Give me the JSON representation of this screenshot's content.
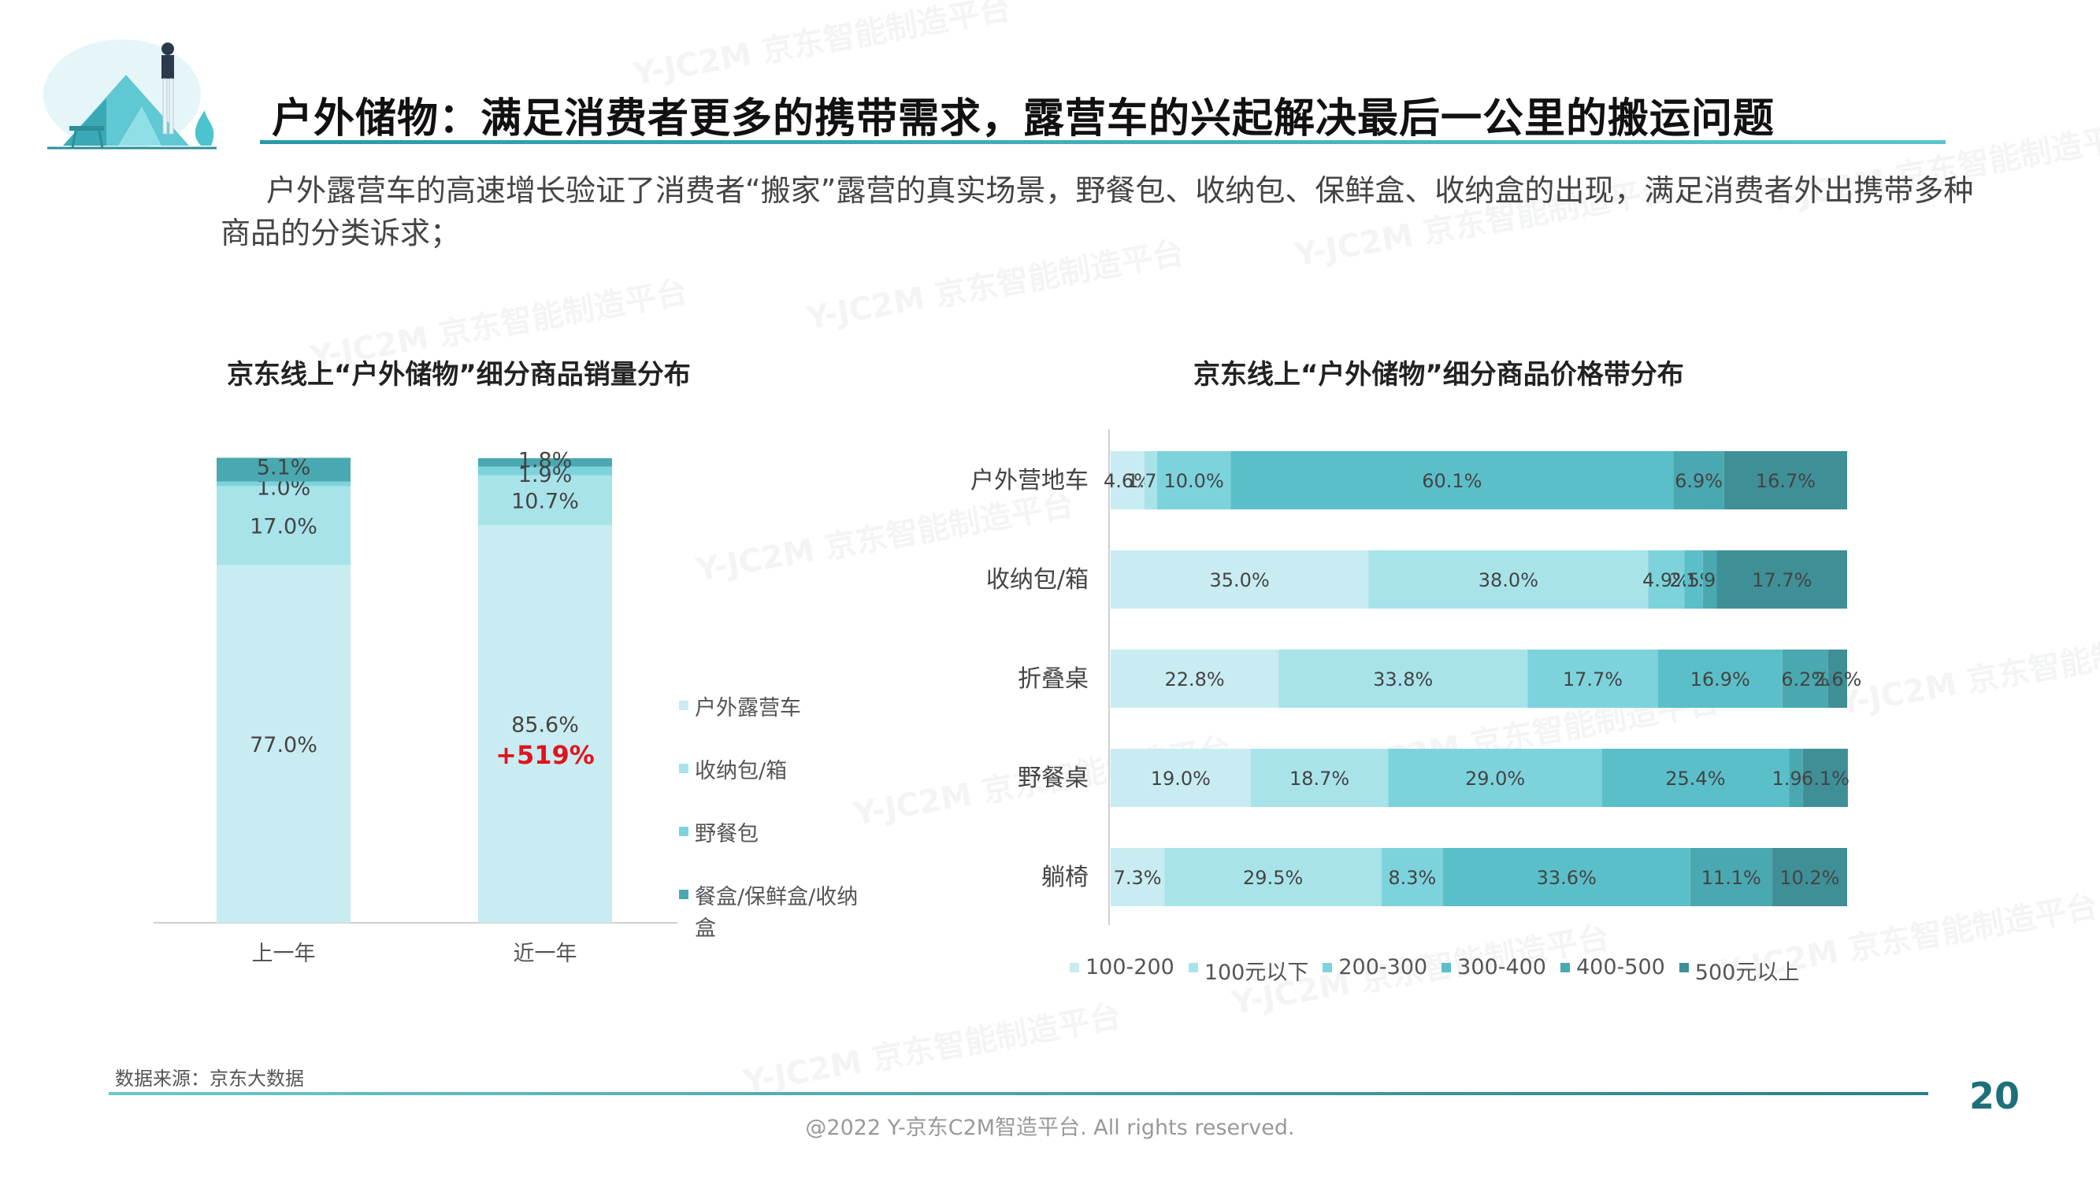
{
  "header": {
    "title": "户外储物：满足消费者更多的携带需求，露营车的兴起解决最后一公里的搬运问题",
    "intro": "户外露营车的高速增长验证了消费者“搬家”露营的真实场景，野餐包、收纳包、保鲜盒、收纳盒的出现，满足消费者外出携带多种商品的分类诉求；"
  },
  "watermark": "Y-JC2M 京东智能制造平台",
  "footer": {
    "source": "数据来源：京东大数据",
    "copyright": "@2022 Y-京东C2M智造平台. All rights reserved.",
    "page_number": "20"
  },
  "colors": {
    "c1": "#c8ecf1",
    "c2": "#a8e3ea",
    "c3": "#7dd3dc",
    "c4": "#5bbfc9",
    "c5": "#4aa8b0",
    "c6": "#3f8f97",
    "title_line": "#2a9aa8",
    "growth": "#e0141e",
    "page_number": "#1f6f7a"
  },
  "chart_data": [
    {
      "type": "bar",
      "stacked": true,
      "title": "京东线上“户外储物”细分商品销量分布",
      "categories": [
        "上一年",
        "近一年"
      ],
      "series": [
        {
          "name": "户外露营车",
          "values": [
            77.0,
            85.6
          ],
          "color": "#c8ecf1"
        },
        {
          "name": "收纳包/箱",
          "values": [
            17.0,
            10.7
          ],
          "color": "#a8e3ea"
        },
        {
          "name": "野餐包",
          "values": [
            1.0,
            1.9
          ],
          "color": "#7dd3dc"
        },
        {
          "name": "餐盒/保鲜盒/收纳盒",
          "values": [
            5.1,
            1.8
          ],
          "color": "#4aa8b0"
        }
      ],
      "labels": [
        [
          "77.0%",
          "17.0%",
          "1.0%",
          "5.1%"
        ],
        [
          "85.6%",
          "10.7%",
          "1.9%",
          "1.8%"
        ]
      ],
      "annotation": "+519%",
      "legend_position": "right"
    },
    {
      "type": "bar",
      "orientation": "horizontal",
      "stacked": true,
      "title": "京东线上“户外储物”细分商品价格带分布",
      "categories": [
        "户外营地车",
        "收纳包/箱",
        "折叠桌",
        "野餐桌",
        "躺椅"
      ],
      "series": [
        {
          "name": "100-200",
          "values": [
            4.6,
            35.0,
            22.8,
            19.0,
            7.3
          ],
          "color": "#c8ecf1"
        },
        {
          "name": "100元以下",
          "values": [
            1.7,
            38.0,
            33.8,
            18.7,
            29.5
          ],
          "color": "#a8e3ea"
        },
        {
          "name": "200-300",
          "values": [
            10.0,
            4.9,
            17.7,
            29.0,
            8.3
          ],
          "color": "#7dd3dc"
        },
        {
          "name": "300-400",
          "values": [
            60.1,
            2.5,
            16.9,
            25.4,
            33.6
          ],
          "color": "#5bbfc9"
        },
        {
          "name": "400-500",
          "values": [
            6.9,
            1.9,
            6.2,
            1.9,
            11.1
          ],
          "color": "#4aa8b0"
        },
        {
          "name": "500元以上",
          "values": [
            16.7,
            17.7,
            2.6,
            6.1,
            10.2
          ],
          "color": "#3f8f97"
        }
      ],
      "labels": [
        [
          "4.6%",
          "1.7%",
          "10.0%",
          "60.1%",
          "6.9%",
          "16.7%"
        ],
        [
          "35.0%",
          "38.0%",
          "4.9%",
          "2.5%",
          "1.9%",
          "17.7%"
        ],
        [
          "22.8%",
          "33.8%",
          "17.7%",
          "16.9%",
          "6.2%",
          "2.6%"
        ],
        [
          "19.0%",
          "18.7%",
          "29.0%",
          "25.4%",
          "1.9%",
          "6.1%"
        ],
        [
          "7.3%",
          "29.5%",
          "8.3%",
          "33.6%",
          "11.1%",
          "10.2%"
        ]
      ],
      "legend_position": "bottom"
    }
  ]
}
